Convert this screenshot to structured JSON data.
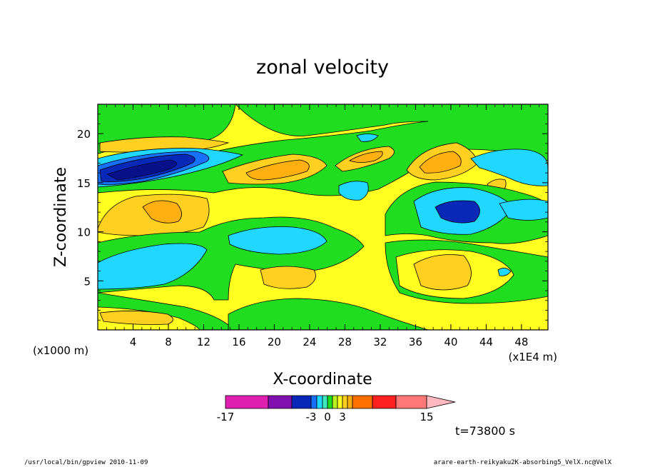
{
  "chart_data": {
    "type": "heatmap",
    "title": "zonal velocity",
    "xlabel": "X-coordinate",
    "ylabel": "Z-coordinate",
    "x_unit_note": "(x1E4 m)",
    "y_unit_note": "(x1000 m)",
    "xlim": [
      0,
      51
    ],
    "ylim": [
      0,
      23
    ],
    "x_ticks": [
      4,
      8,
      12,
      16,
      20,
      24,
      28,
      32,
      36,
      40,
      44,
      48
    ],
    "y_ticks": [
      5,
      10,
      15,
      20
    ],
    "colorbar": {
      "levels": [
        -17,
        -12,
        -7,
        -3,
        -2,
        -1,
        0,
        1,
        2,
        3,
        4,
        5,
        8,
        11,
        15
      ],
      "colors": [
        "#e020b0",
        "#8010b0",
        "#0828b8",
        "#1870ff",
        "#20d8ff",
        "#40e8c0",
        "#20dd20",
        "#b8f020",
        "#ffff20",
        "#ffd020",
        "#ffb010",
        "#ff7000",
        "#ff2020",
        "#ff7878"
      ],
      "extend_color": "#ffb8c0",
      "tick_labels": [
        {
          "text": "-17",
          "value": -17
        },
        {
          "text": "-3",
          "value": -3
        },
        {
          "text": "0",
          "value": 0
        },
        {
          "text": "3",
          "value": 3
        },
        {
          "text": "15",
          "value": 15
        }
      ]
    },
    "annotation_time": "t=73800 s"
  },
  "footer": {
    "left": "/usr/local/bin/gpview  2010-11-09",
    "right": "arare-earth-reikyaku2K-absorbing5_VelX.nc@VelX"
  }
}
